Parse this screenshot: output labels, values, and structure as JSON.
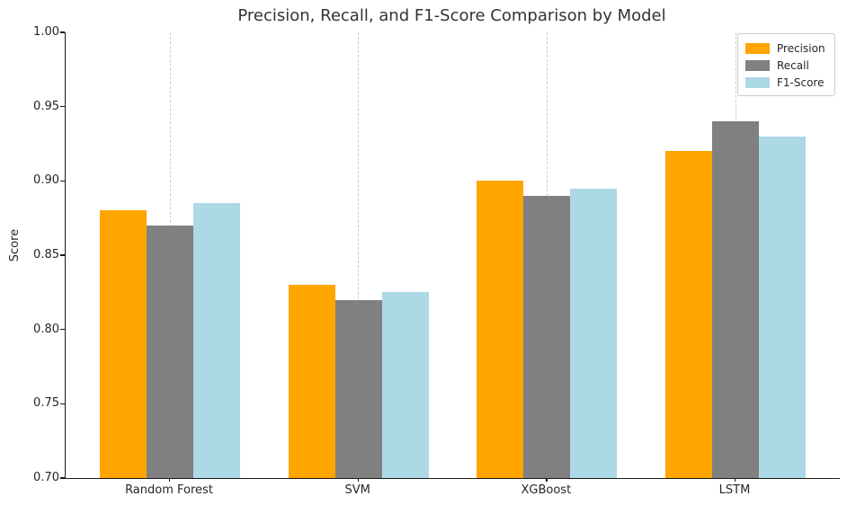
{
  "chart_data": {
    "type": "bar",
    "title": "Precision, Recall, and F1-Score Comparison by Model",
    "xlabel": "",
    "ylabel": "Score",
    "categories": [
      "Random Forest",
      "SVM",
      "XGBoost",
      "LSTM"
    ],
    "series": [
      {
        "name": "Precision",
        "color": "#FFA500",
        "values": [
          0.88,
          0.83,
          0.9,
          0.92
        ]
      },
      {
        "name": "Recall",
        "color": "#808080",
        "values": [
          0.87,
          0.82,
          0.89,
          0.94
        ]
      },
      {
        "name": "F1-Score",
        "color": "#ADD8E6",
        "values": [
          0.885,
          0.825,
          0.895,
          0.93
        ]
      }
    ],
    "ylim": [
      0.7,
      1.0
    ],
    "ytick_labels": [
      "1.00",
      "0.95",
      "0.90",
      "0.85",
      "0.80",
      "0.75",
      "0.70"
    ],
    "grid": "vertical-dashed",
    "legend_position": "upper-right",
    "colors": {
      "background": "#ffffff",
      "axis": "#1a1a1a",
      "grid": "#cccccc",
      "text": "#262626",
      "title": "#333333"
    }
  }
}
